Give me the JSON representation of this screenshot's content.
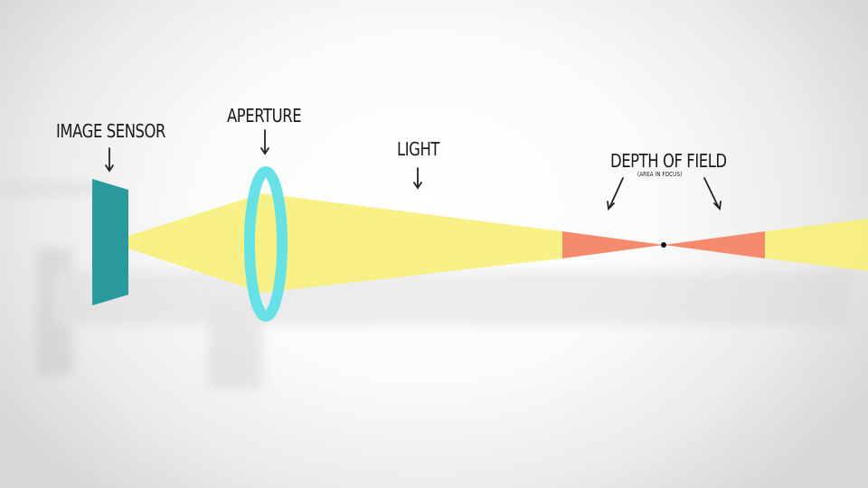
{
  "labels": {
    "image_sensor": "IMAGE SENSOR",
    "aperture": "APERTURE",
    "light": "LIGHT",
    "depth_of_field": "DEPTH OF FIELD",
    "depth_of_field_note": "(AREA IN FOCUS)"
  },
  "colors": {
    "sensor": "#2a9a9c",
    "aperture_ring": "#5fe0e8",
    "light_beam": "#f6f07a",
    "focus_zone": "#f58a6c",
    "background": "#f5f5f5",
    "text": "#1a1a1a"
  }
}
